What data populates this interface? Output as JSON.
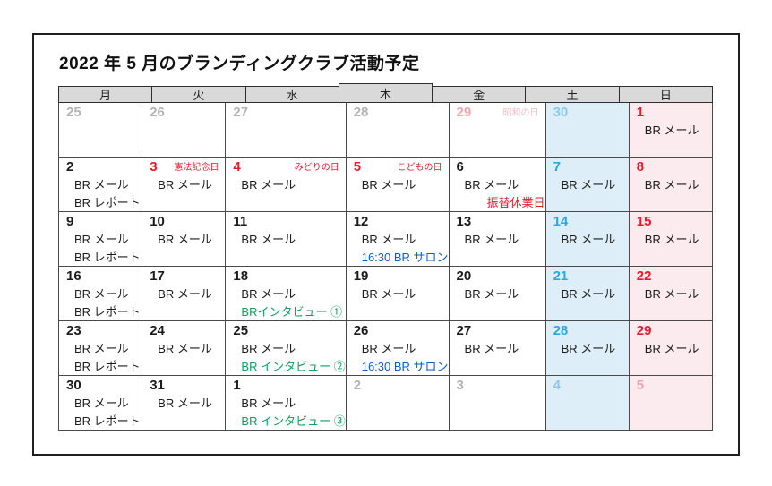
{
  "title": "2022 年 5 月のブランディングクラブ活動予定",
  "weekdays": [
    "月",
    "火",
    "水",
    "木",
    "金",
    "土",
    "日"
  ],
  "colors": {
    "tones": {
      "black": "#1c1c1c",
      "gray": "#b4b4b4",
      "red": "#e8192c",
      "blue": "#2ba7e0",
      "faded_red": "#f2a6ac",
      "faded_blue": "#8cc7ea"
    },
    "events": {
      "black": "#1c1c1c",
      "red": "#e8192c",
      "blue": "#0f5cc2",
      "green": "#0aa05c",
      "faded_red": "#ecc0c5"
    },
    "header_bg": "#d9d9d9",
    "saturday_bg": "#ddeef8",
    "sunday_bg": "#fbeaee",
    "grid_line": "#4a4a4a"
  },
  "weeks": [
    [
      {
        "day": "25",
        "tone": "gray",
        "events": []
      },
      {
        "day": "26",
        "tone": "gray",
        "events": []
      },
      {
        "day": "27",
        "tone": "gray",
        "events": []
      },
      {
        "day": "28",
        "tone": "gray",
        "events": []
      },
      {
        "day": "29",
        "tone": "faded_red",
        "holiday": {
          "text": "昭和の日",
          "color": "faded_red"
        },
        "events": []
      },
      {
        "day": "30",
        "tone": "faded_blue",
        "events": []
      },
      {
        "day": "1",
        "tone": "red",
        "events": [
          {
            "text": "BR メール",
            "color": "black"
          }
        ]
      }
    ],
    [
      {
        "day": "2",
        "tone": "black",
        "events": [
          {
            "text": "BR メール",
            "color": "black"
          },
          {
            "text": "BR レポート",
            "color": "black"
          }
        ]
      },
      {
        "day": "3",
        "tone": "red",
        "holiday": {
          "text": "憲法記念日",
          "color": "red"
        },
        "events": [
          {
            "text": "BR メール",
            "color": "black"
          }
        ]
      },
      {
        "day": "4",
        "tone": "red",
        "holiday": {
          "text": "みどりの日",
          "color": "red"
        },
        "events": [
          {
            "text": "BR メール",
            "color": "black"
          }
        ]
      },
      {
        "day": "5",
        "tone": "red",
        "holiday": {
          "text": "こどもの日",
          "color": "red"
        },
        "events": [
          {
            "text": "BR メール",
            "color": "black"
          }
        ]
      },
      {
        "day": "6",
        "tone": "black",
        "events": [
          {
            "text": "BR メール",
            "color": "black"
          },
          {
            "text": "振替休業日",
            "color": "red",
            "indent": 42
          }
        ]
      },
      {
        "day": "7",
        "tone": "blue",
        "events": [
          {
            "text": "BR メール",
            "color": "black"
          }
        ]
      },
      {
        "day": "8",
        "tone": "red",
        "events": [
          {
            "text": "BR メール",
            "color": "black"
          }
        ]
      }
    ],
    [
      {
        "day": "9",
        "tone": "black",
        "events": [
          {
            "text": "BR メール",
            "color": "black"
          },
          {
            "text": "BR レポート",
            "color": "black"
          }
        ]
      },
      {
        "day": "10",
        "tone": "black",
        "events": [
          {
            "text": "BR メール",
            "color": "black"
          }
        ]
      },
      {
        "day": "11",
        "tone": "black",
        "events": [
          {
            "text": "BR メール",
            "color": "black"
          }
        ]
      },
      {
        "day": "12",
        "tone": "black",
        "events": [
          {
            "text": "BR メール",
            "color": "black"
          },
          {
            "text": "16:30  BR サロン",
            "color": "blue"
          }
        ]
      },
      {
        "day": "13",
        "tone": "black",
        "events": [
          {
            "text": "BR メール",
            "color": "black"
          }
        ]
      },
      {
        "day": "14",
        "tone": "blue",
        "events": [
          {
            "text": "BR メール",
            "color": "black"
          }
        ]
      },
      {
        "day": "15",
        "tone": "red",
        "events": [
          {
            "text": "BR メール",
            "color": "black"
          }
        ]
      }
    ],
    [
      {
        "day": "16",
        "tone": "black",
        "events": [
          {
            "text": "BR メール",
            "color": "black"
          },
          {
            "text": "BR レポート",
            "color": "black"
          }
        ]
      },
      {
        "day": "17",
        "tone": "black",
        "events": [
          {
            "text": "BR メール",
            "color": "black"
          }
        ]
      },
      {
        "day": "18",
        "tone": "black",
        "events": [
          {
            "text": "BR メール",
            "color": "black"
          },
          {
            "text": "BRインタビュー ①",
            "color": "green"
          }
        ]
      },
      {
        "day": "19",
        "tone": "black",
        "events": [
          {
            "text": "BR メール",
            "color": "black"
          }
        ]
      },
      {
        "day": "20",
        "tone": "black",
        "events": [
          {
            "text": "BR メール",
            "color": "black"
          }
        ]
      },
      {
        "day": "21",
        "tone": "blue",
        "events": [
          {
            "text": "BR メール",
            "color": "black"
          }
        ]
      },
      {
        "day": "22",
        "tone": "red",
        "events": [
          {
            "text": "BR メール",
            "color": "black"
          }
        ]
      }
    ],
    [
      {
        "day": "23",
        "tone": "black",
        "events": [
          {
            "text": "BR メール",
            "color": "black"
          },
          {
            "text": "BR レポート",
            "color": "black"
          }
        ]
      },
      {
        "day": "24",
        "tone": "black",
        "events": [
          {
            "text": "BR メール",
            "color": "black"
          }
        ]
      },
      {
        "day": "25",
        "tone": "black",
        "events": [
          {
            "text": "BR メール",
            "color": "black"
          },
          {
            "text": "BR インタビュー ②",
            "color": "green"
          }
        ]
      },
      {
        "day": "26",
        "tone": "black",
        "events": [
          {
            "text": "BR メール",
            "color": "black"
          },
          {
            "text": "16:30  BR サロン",
            "color": "blue"
          }
        ]
      },
      {
        "day": "27",
        "tone": "black",
        "events": [
          {
            "text": "BR メール",
            "color": "black"
          }
        ]
      },
      {
        "day": "28",
        "tone": "blue",
        "events": [
          {
            "text": "BR メール",
            "color": "black"
          }
        ]
      },
      {
        "day": "29",
        "tone": "red",
        "events": [
          {
            "text": "BR メール",
            "color": "black"
          }
        ]
      }
    ],
    [
      {
        "day": "30",
        "tone": "black",
        "events": [
          {
            "text": "BR メール",
            "color": "black"
          },
          {
            "text": "BR レポート",
            "color": "black"
          }
        ]
      },
      {
        "day": "31",
        "tone": "black",
        "events": [
          {
            "text": "BR メール",
            "color": "black"
          }
        ]
      },
      {
        "day": "1",
        "tone": "black",
        "events": [
          {
            "text": "BR メール",
            "color": "black"
          },
          {
            "text": "BR インタビュー ③",
            "color": "green"
          }
        ]
      },
      {
        "day": "2",
        "tone": "gray",
        "events": []
      },
      {
        "day": "3",
        "tone": "gray",
        "events": []
      },
      {
        "day": "4",
        "tone": "faded_blue",
        "events": []
      },
      {
        "day": "5",
        "tone": "faded_red",
        "events": []
      }
    ]
  ]
}
